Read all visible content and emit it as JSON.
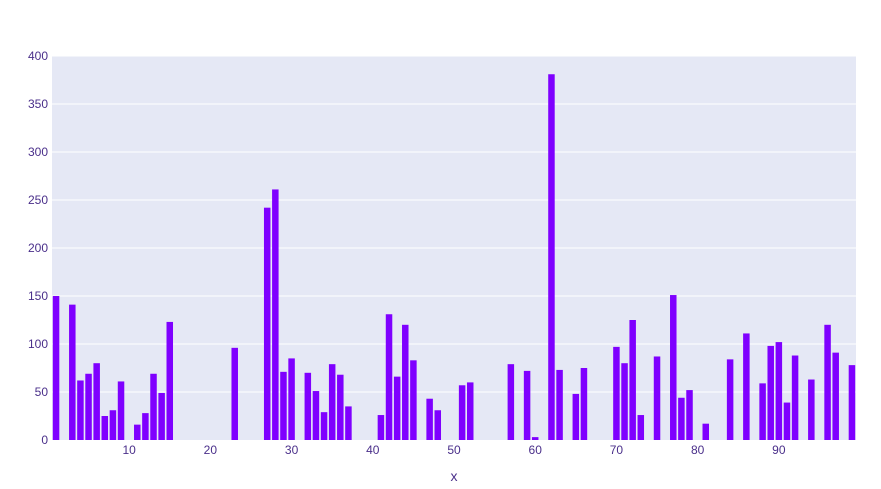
{
  "chart_data": {
    "type": "bar",
    "xlabel": "x",
    "ylabel": "",
    "xlim": [
      0.5,
      99.5
    ],
    "ylim": [
      0,
      400
    ],
    "x_ticks": [
      10,
      20,
      30,
      40,
      50,
      60,
      70,
      80,
      90
    ],
    "y_ticks": [
      0,
      50,
      100,
      150,
      200,
      250,
      300,
      350,
      400
    ],
    "grid": true,
    "x": [
      1,
      2,
      3,
      4,
      5,
      6,
      7,
      8,
      9,
      10,
      11,
      12,
      13,
      14,
      15,
      16,
      17,
      18,
      19,
      20,
      21,
      22,
      23,
      24,
      25,
      26,
      27,
      28,
      29,
      30,
      31,
      32,
      33,
      34,
      35,
      36,
      37,
      38,
      39,
      40,
      41,
      42,
      43,
      44,
      45,
      46,
      47,
      48,
      49,
      50,
      51,
      52,
      53,
      54,
      55,
      56,
      57,
      58,
      59,
      60,
      61,
      62,
      63,
      64,
      65,
      66,
      67,
      68,
      69,
      70,
      71,
      72,
      73,
      74,
      75,
      76,
      77,
      78,
      79,
      80,
      81,
      82,
      83,
      84,
      85,
      86,
      87,
      88,
      89,
      90,
      91,
      92,
      93,
      94,
      95,
      96,
      97,
      98,
      99
    ],
    "values": [
      150,
      0,
      141,
      62,
      69,
      80,
      25,
      31,
      61,
      0,
      16,
      28,
      69,
      49,
      123,
      0,
      0,
      0,
      0,
      0,
      0,
      0,
      96,
      0,
      0,
      0,
      242,
      261,
      71,
      85,
      0,
      70,
      51,
      29,
      79,
      68,
      35,
      0,
      0,
      0,
      26,
      131,
      66,
      120,
      83,
      0,
      43,
      31,
      0,
      0,
      57,
      60,
      0,
      0,
      0,
      0,
      79,
      0,
      72,
      3,
      0,
      381,
      73,
      0,
      48,
      75,
      0,
      0,
      0,
      97,
      80,
      125,
      26,
      0,
      87,
      0,
      151,
      44,
      52,
      0,
      17,
      0,
      0,
      84,
      0,
      111,
      0,
      59,
      98,
      102,
      39,
      88,
      0,
      63,
      0,
      120,
      91,
      0,
      78
    ],
    "colors": {
      "bar": "#7f00ff",
      "plot_bg": "#e5e8f5",
      "grid": "#ffffff",
      "text": "#4a2f8a"
    }
  }
}
